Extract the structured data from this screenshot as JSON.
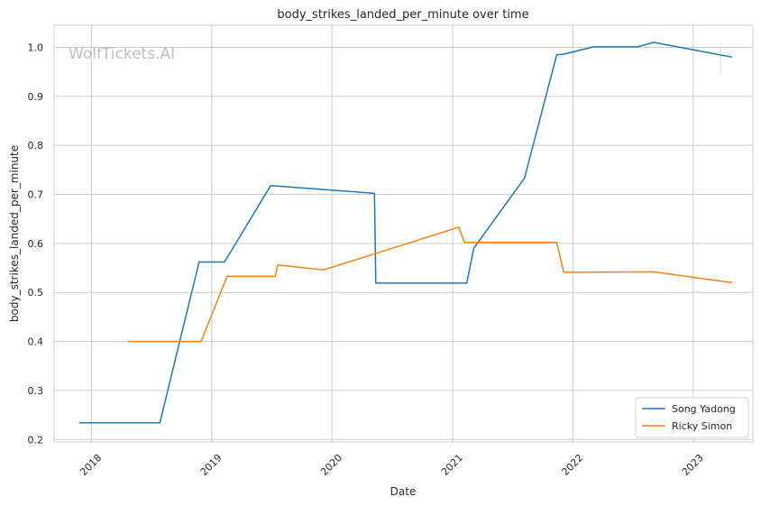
{
  "chart_data": {
    "type": "line",
    "title": "body_strikes_landed_per_minute over time",
    "xlabel": "Date",
    "ylabel": "body_strikes_landed_per_minute",
    "watermark": "WolfTickets.AI",
    "xlim": [
      "2017-09-10",
      "2023-07-01"
    ],
    "ylim": [
      0.195,
      1.045
    ],
    "x_ticks": [
      {
        "date": "2018-01-01",
        "label": "2018"
      },
      {
        "date": "2019-01-01",
        "label": "2019"
      },
      {
        "date": "2020-01-01",
        "label": "2020"
      },
      {
        "date": "2021-01-01",
        "label": "2021"
      },
      {
        "date": "2022-01-01",
        "label": "2022"
      },
      {
        "date": "2023-01-01",
        "label": "2023"
      }
    ],
    "y_ticks": [
      {
        "value": 0.2,
        "label": "0.2"
      },
      {
        "value": 0.3,
        "label": "0.3"
      },
      {
        "value": 0.4,
        "label": "0.4"
      },
      {
        "value": 0.5,
        "label": "0.5"
      },
      {
        "value": 0.6,
        "label": "0.6"
      },
      {
        "value": 0.7,
        "label": "0.7"
      },
      {
        "value": 0.8,
        "label": "0.8"
      },
      {
        "value": 0.9,
        "label": "0.9"
      },
      {
        "value": 1.0,
        "label": "1.0"
      }
    ],
    "grid": true,
    "legend_position": "bottom-right",
    "series": [
      {
        "name": "Song Yadong",
        "color": "#1f77b4",
        "points": [
          {
            "x": "2017-11-25",
            "y": 0.234
          },
          {
            "x": "2018-07-28",
            "y": 0.234
          },
          {
            "x": "2018-11-24",
            "y": 0.562
          },
          {
            "x": "2019-02-09",
            "y": 0.562
          },
          {
            "x": "2019-06-29",
            "y": 0.718
          },
          {
            "x": "2020-05-09",
            "y": 0.702
          },
          {
            "x": "2020-05-13",
            "y": 0.519
          },
          {
            "x": "2021-02-13",
            "y": 0.519
          },
          {
            "x": "2021-03-06",
            "y": 0.59
          },
          {
            "x": "2021-08-07",
            "y": 0.733
          },
          {
            "x": "2021-11-13",
            "y": 0.985
          },
          {
            "x": "2021-12-04",
            "y": 0.986
          },
          {
            "x": "2022-03-05",
            "y": 1.001
          },
          {
            "x": "2022-07-16",
            "y": 1.001
          },
          {
            "x": "2022-09-03",
            "y": 1.01
          },
          {
            "x": "2023-04-29",
            "y": 0.98
          }
        ]
      },
      {
        "name": "Ricky Simon",
        "color": "#ff7f0e",
        "points": [
          {
            "x": "2018-04-21",
            "y": 0.4
          },
          {
            "x": "2018-11-30",
            "y": 0.4
          },
          {
            "x": "2019-02-17",
            "y": 0.533
          },
          {
            "x": "2019-07-13",
            "y": 0.533
          },
          {
            "x": "2019-07-20",
            "y": 0.556
          },
          {
            "x": "2019-12-07",
            "y": 0.546
          },
          {
            "x": "2021-01-20",
            "y": 0.633
          },
          {
            "x": "2021-02-06",
            "y": 0.602
          },
          {
            "x": "2021-11-13",
            "y": 0.602
          },
          {
            "x": "2021-12-04",
            "y": 0.541
          },
          {
            "x": "2022-09-03",
            "y": 0.542
          },
          {
            "x": "2023-04-29",
            "y": 0.52
          }
        ]
      }
    ]
  }
}
